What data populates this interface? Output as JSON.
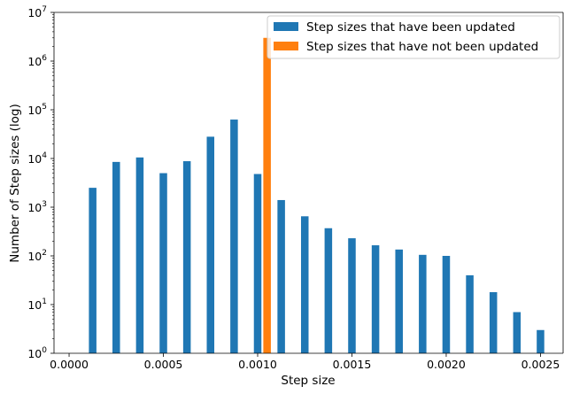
{
  "chart_data": {
    "type": "bar",
    "xlabel": "Step size",
    "ylabel": "Number of Step sizes (log)",
    "yscale": "log",
    "ylim": [
      1,
      10000000
    ],
    "xlim": [
      -8e-05,
      0.00262
    ],
    "grid": false,
    "legend_position": "top-right",
    "x_ticks": [
      0.0,
      0.0005,
      0.001,
      0.0015,
      0.002,
      0.0025
    ],
    "x_tick_labels": [
      "0.0000",
      "0.0005",
      "0.0010",
      "0.0015",
      "0.0020",
      "0.0025"
    ],
    "y_ticks": [
      {
        "base": "10",
        "exp": "0",
        "value": 1
      },
      {
        "base": "10",
        "exp": "1",
        "value": 10
      },
      {
        "base": "10",
        "exp": "2",
        "value": 100
      },
      {
        "base": "10",
        "exp": "3",
        "value": 1000
      },
      {
        "base": "10",
        "exp": "4",
        "value": 10000
      },
      {
        "base": "10",
        "exp": "5",
        "value": 100000
      },
      {
        "base": "10",
        "exp": "6",
        "value": 1000000
      },
      {
        "base": "10",
        "exp": "7",
        "value": 10000000
      }
    ],
    "series": [
      {
        "name": "Step sizes that have been updated",
        "color": "#1f77b4",
        "points": [
          {
            "x": 0.000125,
            "y": 2500
          },
          {
            "x": 0.00025,
            "y": 8500
          },
          {
            "x": 0.000375,
            "y": 10500
          },
          {
            "x": 0.0005,
            "y": 5000
          },
          {
            "x": 0.000625,
            "y": 8800
          },
          {
            "x": 0.00075,
            "y": 28000
          },
          {
            "x": 0.000875,
            "y": 63000
          },
          {
            "x": 0.001,
            "y": 4800
          },
          {
            "x": 0.001125,
            "y": 1400
          },
          {
            "x": 0.00125,
            "y": 650
          },
          {
            "x": 0.001375,
            "y": 370
          },
          {
            "x": 0.0015,
            "y": 230
          },
          {
            "x": 0.001625,
            "y": 165
          },
          {
            "x": 0.00175,
            "y": 135
          },
          {
            "x": 0.001875,
            "y": 105
          },
          {
            "x": 0.002,
            "y": 100
          },
          {
            "x": 0.002125,
            "y": 40
          },
          {
            "x": 0.00225,
            "y": 18
          },
          {
            "x": 0.002375,
            "y": 7
          },
          {
            "x": 0.0025,
            "y": 3
          }
        ]
      },
      {
        "name": "Step sizes that have not been updated",
        "color": "#ff7f0e",
        "points": [
          {
            "x": 0.00105,
            "y": 3000000
          }
        ]
      }
    ]
  }
}
